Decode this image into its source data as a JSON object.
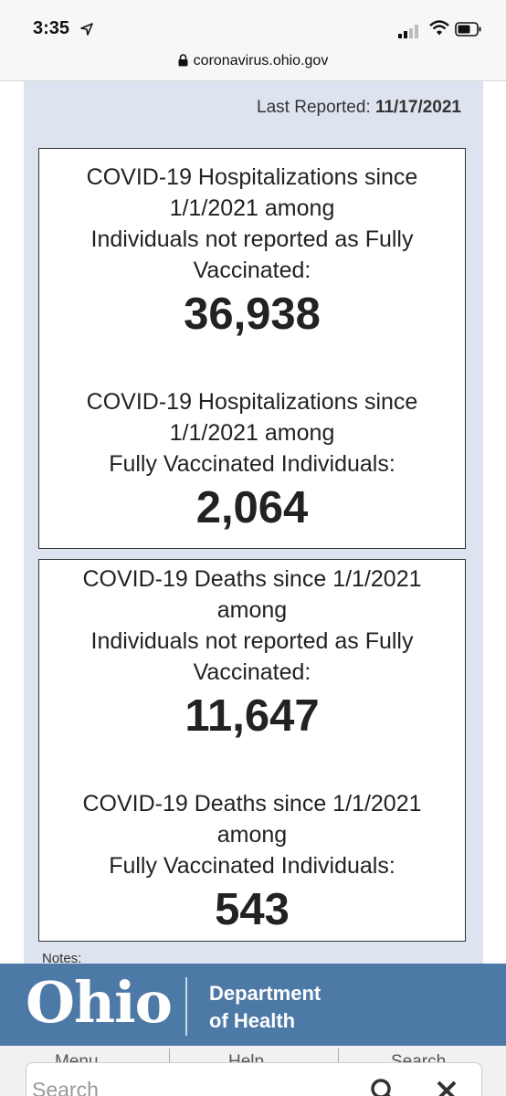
{
  "status_bar": {
    "time": "3:35",
    "icons": [
      "location-arrow-icon",
      "signal-icon",
      "wifi-icon",
      "battery-icon"
    ]
  },
  "browser": {
    "url": "coronavirus.ohio.gov"
  },
  "report": {
    "last_reported_label": "Last Reported:",
    "last_reported_date": "11/17/2021"
  },
  "hospitalizations": {
    "unvaccinated_label": "COVID-19 Hospitalizations since\n1/1/2021 among\nIndividuals not reported as Fully\nVaccinated:",
    "unvaccinated_value": "36,938",
    "vaccinated_label": "COVID-19 Hospitalizations since\n1/1/2021 among\nFully Vaccinated Individuals:",
    "vaccinated_value": "2,064"
  },
  "deaths": {
    "unvaccinated_label": "COVID-19 Deaths since 1/1/2021\namong\nIndividuals not reported as Fully\nVaccinated:",
    "unvaccinated_value": "11,647",
    "vaccinated_label": "COVID-19 Deaths since 1/1/2021\namong\nFully Vaccinated Individuals:",
    "vaccinated_value": "543"
  },
  "notes_label": "Notes:",
  "header": {
    "logo_text": "Ohio",
    "department_line1": "Department",
    "department_line2": "of Health",
    "brand_color": "#4d79a6"
  },
  "bottom_nav": {
    "items": [
      "Menu",
      "Help",
      "Search"
    ],
    "search_placeholder": "Search"
  }
}
